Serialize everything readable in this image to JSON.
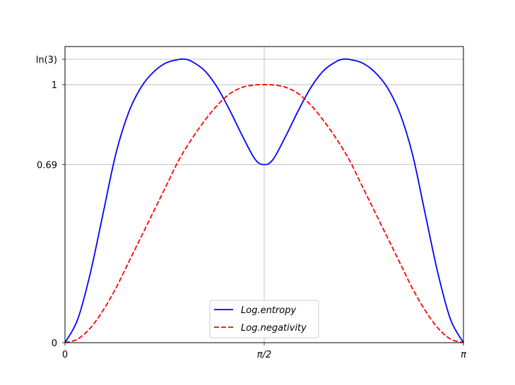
{
  "chart_data": {
    "type": "line",
    "title": "",
    "xlabel": "",
    "ylabel": "",
    "xlim": [
      0,
      3.14159265
    ],
    "ylim": [
      0,
      1.0986
    ],
    "grid": "x at π/2; y at 0.69, 1, ln(3)",
    "x_ticks": [
      {
        "value": 0,
        "label": "0"
      },
      {
        "value": 1.5707963,
        "label": "π/2"
      },
      {
        "value": 3.14159265,
        "label": "π"
      }
    ],
    "y_ticks": [
      {
        "value": 0,
        "label": "0"
      },
      {
        "value": 0.69,
        "label": "0.69"
      },
      {
        "value": 1,
        "label": "1"
      },
      {
        "value": 1.0986,
        "label": "ln(3)"
      }
    ],
    "legend": {
      "position": "lower center"
    },
    "series": [
      {
        "name": "Log.entropy",
        "color": "#0000ff",
        "style": "solid",
        "x": [
          0,
          0.1,
          0.2,
          0.3,
          0.4,
          0.5,
          0.6,
          0.7,
          0.8,
          0.9,
          0.95,
          1.0,
          1.1,
          1.2,
          1.3,
          1.4,
          1.5,
          1.5708,
          1.64,
          1.74,
          1.84,
          1.94,
          2.04,
          2.14,
          2.19,
          2.24,
          2.34,
          2.44,
          2.54,
          2.64,
          2.74,
          2.84,
          2.94,
          3.04,
          3.1416
        ],
        "y": [
          0,
          0.09,
          0.27,
          0.5,
          0.73,
          0.89,
          0.99,
          1.05,
          1.085,
          1.098,
          1.0986,
          1.09,
          1.055,
          0.99,
          0.9,
          0.8,
          0.71,
          0.69,
          0.71,
          0.8,
          0.9,
          0.99,
          1.055,
          1.09,
          1.0986,
          1.098,
          1.085,
          1.05,
          0.99,
          0.89,
          0.73,
          0.5,
          0.27,
          0.09,
          0
        ]
      },
      {
        "name": "Log.negativity",
        "color": "#ff0000",
        "style": "dashed",
        "x": [
          0,
          0.1,
          0.2,
          0.3,
          0.4,
          0.5,
          0.6,
          0.7,
          0.8,
          0.9,
          1.0,
          1.1,
          1.2,
          1.3,
          1.4,
          1.5,
          1.5708,
          1.64,
          1.74,
          1.84,
          1.94,
          2.04,
          2.14,
          2.24,
          2.34,
          2.44,
          2.54,
          2.64,
          2.74,
          2.84,
          2.94,
          3.04,
          3.1416
        ],
        "y": [
          0,
          0.014,
          0.057,
          0.125,
          0.21,
          0.31,
          0.41,
          0.51,
          0.61,
          0.71,
          0.79,
          0.86,
          0.92,
          0.965,
          0.99,
          0.999,
          1.0,
          0.999,
          0.99,
          0.965,
          0.92,
          0.86,
          0.79,
          0.71,
          0.61,
          0.51,
          0.41,
          0.31,
          0.21,
          0.125,
          0.057,
          0.014,
          0
        ]
      }
    ]
  }
}
